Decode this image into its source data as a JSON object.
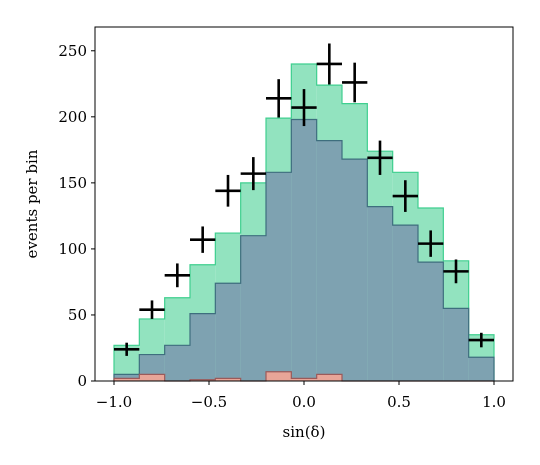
{
  "chart_data": {
    "type": "histogram",
    "xlabel": "sin(δ)",
    "ylabel": "events per bin",
    "xlim": [
      -1.1,
      1.1
    ],
    "ylim": [
      0,
      268
    ],
    "xticks": [
      -1.0,
      -0.5,
      0.0,
      0.5,
      1.0
    ],
    "xtick_labels": [
      "−1.0",
      "−0.5",
      "0.0",
      "0.5",
      "1.0"
    ],
    "yticks": [
      0,
      50,
      100,
      150,
      200,
      250
    ],
    "ytick_labels": [
      "0",
      "50",
      "100",
      "150",
      "200",
      "250"
    ],
    "grid": false,
    "bin_edges": [
      -1.0,
      -0.8667,
      -0.7333,
      -0.6,
      -0.4667,
      -0.3333,
      -0.2,
      -0.0667,
      0.0667,
      0.2,
      0.3333,
      0.4667,
      0.6,
      0.7333,
      0.8667,
      1.0
    ],
    "stacked_series": [
      {
        "color": "#e8a598",
        "edge_color": "#9b5a5a",
        "values": [
          2,
          5,
          0,
          1,
          2,
          0,
          7,
          2,
          5,
          0,
          0,
          0,
          0,
          0,
          0
        ]
      },
      {
        "color": "#7ea2b1",
        "edge_color": "#3e6e7e",
        "values": [
          3,
          15,
          27,
          50,
          72,
          110,
          151,
          196,
          177,
          168,
          132,
          118,
          90,
          55,
          18
        ]
      },
      {
        "color": "#92e3bf",
        "edge_color": "#3fcf8f",
        "values": [
          22,
          27,
          36,
          37,
          38,
          40,
          41,
          42,
          42,
          42,
          42,
          40,
          41,
          36,
          17
        ]
      }
    ],
    "data_points": {
      "color": "#000000",
      "x": [
        -0.9333,
        -0.8,
        -0.6667,
        -0.5333,
        -0.4,
        -0.2667,
        -0.1333,
        0.0,
        0.1333,
        0.2667,
        0.4,
        0.5333,
        0.6667,
        0.8,
        0.9333
      ],
      "y": [
        24,
        54,
        80,
        107,
        144,
        157,
        214,
        207,
        240,
        226,
        169,
        140,
        104,
        83,
        31
      ],
      "yerr": [
        5,
        7,
        9,
        10,
        12,
        12.5,
        14.5,
        14,
        15.5,
        15,
        13,
        12,
        10,
        9,
        5.5
      ]
    }
  }
}
